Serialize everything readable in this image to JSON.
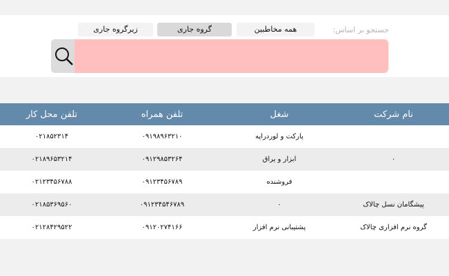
{
  "search": {
    "label": "جستجو بر اساس:",
    "options": [
      {
        "label": "همه مخاطبین",
        "selected": false
      },
      {
        "label": "گروه جاری",
        "selected": true
      },
      {
        "label": "زیرگروه جاری",
        "selected": false
      }
    ],
    "value": "",
    "icon": "search-icon",
    "bg_color": "#ffbfbf"
  },
  "table": {
    "header_color": "#6389ab",
    "columns": [
      "نام شرکت",
      "شغل",
      "تلفن همراه",
      "تلفن محل کار"
    ],
    "rows": [
      [
        "",
        "پارکت و لوردراپه",
        "۰۹۱۹۸۹۶۳۲۱۰",
        "۰۲۱۸۵۲۳۱۴"
      ],
      [
        "۰",
        "ابزار و یراق",
        "۰۹۱۲۹۸۵۳۲۶۴",
        "۰۲۱۸۹۶۵۳۲۱۴"
      ],
      [
        "",
        "فروشنده",
        "۰۹۱۲۳۴۵۶۷۸۹",
        "۰۲۱۲۳۴۵۶۷۸۸"
      ],
      [
        "پیشگامان نسل چالاک",
        "۰",
        "۰۹۱۲۳۴۵۴۶۷۸۹",
        "۰۲۱۸۵۳۶۹۵۶۰"
      ],
      [
        "گروه نرم افزاری چالاک",
        "پشتیبانی نرم افزار",
        "۰۹۱۲۰۲۷۴۱۶۶",
        "۰۲۱۲۸۴۲۹۵۲۲"
      ]
    ]
  }
}
